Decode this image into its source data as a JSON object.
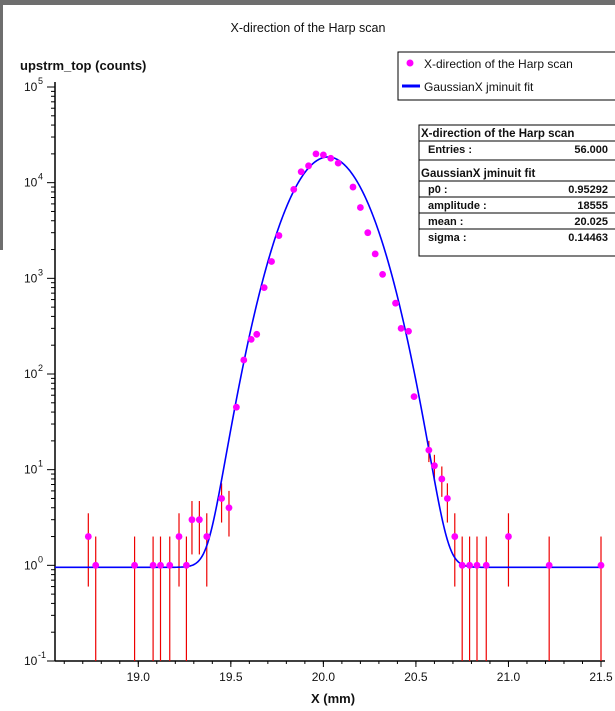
{
  "chart_data": {
    "type": "scatter",
    "title": "X-direction of the Harp scan",
    "xlabel": "X (mm)",
    "ylabel": "upstrm_top (counts)",
    "xlim": [
      18.55,
      21.5
    ],
    "ylim": [
      0.1,
      100000
    ],
    "yscale": "log",
    "x_ticks": [
      "19.0",
      "19.5",
      "20.0",
      "20.5",
      "21.0",
      "21.5"
    ],
    "y_ticks": [
      {
        "base": "10",
        "exp": "-1"
      },
      {
        "base": "10",
        "exp": "0"
      },
      {
        "base": "10",
        "exp": "1"
      },
      {
        "base": "10",
        "exp": "2"
      },
      {
        "base": "10",
        "exp": "3"
      },
      {
        "base": "10",
        "exp": "4"
      },
      {
        "base": "10",
        "exp": "5"
      }
    ],
    "series": [
      {
        "name": "X-direction of the Harp scan",
        "color": "#ff00ff",
        "error_color": "#ee0000",
        "points": [
          {
            "x": 18.73,
            "y": 2.0,
            "lo": 0.6,
            "hi": 3.5
          },
          {
            "x": 18.77,
            "y": 1.0,
            "lo": 0.1,
            "hi": 2.0
          },
          {
            "x": 18.98,
            "y": 1.0,
            "lo": 0.1,
            "hi": 2.0
          },
          {
            "x": 19.08,
            "y": 1.0,
            "lo": 0.1,
            "hi": 2.0
          },
          {
            "x": 19.12,
            "y": 1.0,
            "lo": 0.1,
            "hi": 2.0
          },
          {
            "x": 19.17,
            "y": 1.0,
            "lo": 0.1,
            "hi": 2.0
          },
          {
            "x": 19.22,
            "y": 2.0,
            "lo": 0.6,
            "hi": 3.5
          },
          {
            "x": 19.26,
            "y": 1.0,
            "lo": 0.1,
            "hi": 2.0
          },
          {
            "x": 19.29,
            "y": 3.0,
            "lo": 1.3,
            "hi": 4.7
          },
          {
            "x": 19.33,
            "y": 3.0,
            "lo": 1.3,
            "hi": 4.7
          },
          {
            "x": 19.37,
            "y": 2.0,
            "lo": 0.6,
            "hi": 3.5
          },
          {
            "x": 19.45,
            "y": 5.0,
            "lo": 2.8,
            "hi": 7.2
          },
          {
            "x": 19.49,
            "y": 4.0,
            "lo": 2.0,
            "hi": 6.0
          },
          {
            "x": 19.53,
            "y": 45
          },
          {
            "x": 19.57,
            "y": 140
          },
          {
            "x": 19.61,
            "y": 230
          },
          {
            "x": 19.64,
            "y": 260
          },
          {
            "x": 19.68,
            "y": 800
          },
          {
            "x": 19.72,
            "y": 1500
          },
          {
            "x": 19.76,
            "y": 2800
          },
          {
            "x": 19.84,
            "y": 8500
          },
          {
            "x": 19.88,
            "y": 13000
          },
          {
            "x": 19.92,
            "y": 15000
          },
          {
            "x": 19.96,
            "y": 20000
          },
          {
            "x": 20.0,
            "y": 19500
          },
          {
            "x": 20.04,
            "y": 18000
          },
          {
            "x": 20.08,
            "y": 16000
          },
          {
            "x": 20.16,
            "y": 9000
          },
          {
            "x": 20.2,
            "y": 5500
          },
          {
            "x": 20.24,
            "y": 3000
          },
          {
            "x": 20.28,
            "y": 1800
          },
          {
            "x": 20.32,
            "y": 1100
          },
          {
            "x": 20.39,
            "y": 550
          },
          {
            "x": 20.42,
            "y": 300
          },
          {
            "x": 20.46,
            "y": 280
          },
          {
            "x": 20.49,
            "y": 58
          },
          {
            "x": 20.57,
            "y": 16,
            "lo": 12,
            "hi": 20
          },
          {
            "x": 20.6,
            "y": 11,
            "lo": 7.7,
            "hi": 14.3
          },
          {
            "x": 20.64,
            "y": 8,
            "lo": 5.2,
            "hi": 10.8
          },
          {
            "x": 20.67,
            "y": 5,
            "lo": 2.8,
            "hi": 7.2
          },
          {
            "x": 20.71,
            "y": 2.0,
            "lo": 0.6,
            "hi": 3.5
          },
          {
            "x": 20.75,
            "y": 1.0,
            "lo": 0.1,
            "hi": 2.0
          },
          {
            "x": 20.79,
            "y": 1.0,
            "lo": 0.1,
            "hi": 2.0
          },
          {
            "x": 20.83,
            "y": 1.0,
            "lo": 0.1,
            "hi": 2.0
          },
          {
            "x": 20.88,
            "y": 1.0,
            "lo": 0.1,
            "hi": 2.0
          },
          {
            "x": 21.0,
            "y": 2.0,
            "lo": 0.6,
            "hi": 3.5
          },
          {
            "x": 21.22,
            "y": 1.0,
            "lo": 0.1,
            "hi": 2.0
          },
          {
            "x": 21.5,
            "y": 1.0,
            "lo": 0.1,
            "hi": 2.0
          }
        ]
      },
      {
        "name": "GaussianX jminuit fit",
        "color": "#0000ff",
        "function": "gaussian",
        "params": {
          "p0": 0.95292,
          "amplitude": 18555,
          "mean": 20.025,
          "sigma": 0.14463
        }
      }
    ],
    "legend": {
      "position": "top-right",
      "entries": [
        {
          "label": "X-direction of the Harp scan",
          "marker": "dot",
          "color": "#ff00ff"
        },
        {
          "label": "GaussianX jminuit fit",
          "marker": "line",
          "color": "#0000ff"
        }
      ]
    },
    "stats": {
      "position": "top-right",
      "histogram": {
        "title": "X-direction of the Harp scan",
        "rows": [
          {
            "label": "Entries :",
            "value": "56.000"
          }
        ]
      },
      "fit": {
        "title": "GaussianX jminuit fit",
        "rows": [
          {
            "label": "p0 :",
            "value": "0.95292"
          },
          {
            "label": "amplitude :",
            "value": "18555"
          },
          {
            "label": "mean :",
            "value": "20.025"
          },
          {
            "label": "sigma :",
            "value": "0.14463"
          }
        ]
      }
    }
  }
}
